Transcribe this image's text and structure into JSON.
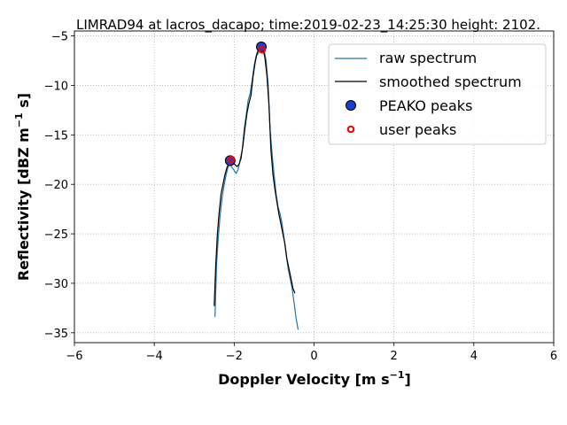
{
  "chart_data": {
    "type": "line",
    "title": "LIMRAD94 at lacros_dacapo; time:2019-02-23_14:25:30 height: 2102.",
    "xlabel": "Doppler Velocity [m s",
    "xlabel_sup": "−1",
    "xlabel_end": "]",
    "ylabel": "Reflectivity [dBZ m",
    "ylabel_sup": "−1",
    "ylabel_end": " s]",
    "xlim": [
      -6,
      6
    ],
    "ylim": [
      -36,
      -4.5
    ],
    "xticks": [
      -6,
      -4,
      -2,
      0,
      2,
      4,
      6
    ],
    "yticks": [
      -35,
      -30,
      -25,
      -20,
      -15,
      -10,
      -5
    ],
    "xtick_labels": [
      "−6",
      "−4",
      "−2",
      "0",
      "2",
      "4",
      "6"
    ],
    "ytick_labels": [
      "−35",
      "−30",
      "−25",
      "−20",
      "−15",
      "−10",
      "−5"
    ],
    "grid": true,
    "legend_position": "top-right",
    "series": [
      {
        "name": "raw spectrum",
        "kind": "line",
        "color": "#1f77b4",
        "x": [
          -2.48,
          -2.44,
          -2.4,
          -2.35,
          -2.3,
          -2.25,
          -2.2,
          -2.15,
          -2.1,
          -2.05,
          -2.0,
          -1.95,
          -1.9,
          -1.85,
          -1.8,
          -1.75,
          -1.7,
          -1.65,
          -1.6,
          -1.55,
          -1.5,
          -1.45,
          -1.4,
          -1.35,
          -1.3,
          -1.25,
          -1.2,
          -1.15,
          -1.1,
          -1.05,
          -1.0,
          -0.95,
          -0.9,
          -0.85,
          -0.8,
          -0.75,
          -0.7,
          -0.65,
          -0.6,
          -0.55,
          -0.5,
          -0.45,
          -0.4
        ],
        "y": [
          -33.4,
          -28.0,
          -25.5,
          -23.0,
          -21.3,
          -20.0,
          -19.0,
          -18.2,
          -18.0,
          -18.3,
          -18.6,
          -18.9,
          -18.5,
          -17.5,
          -16.5,
          -14.5,
          -13.0,
          -11.5,
          -10.8,
          -9.5,
          -8.0,
          -7.0,
          -6.8,
          -6.3,
          -6.2,
          -6.4,
          -7.5,
          -10.0,
          -14.5,
          -17.0,
          -19.0,
          -21.0,
          -22.3,
          -23.0,
          -24.0,
          -25.5,
          -27.0,
          -28.5,
          -29.5,
          -30.5,
          -32.0,
          -33.5,
          -34.7
        ]
      },
      {
        "name": "smoothed spectrum",
        "kind": "line",
        "color": "#000000",
        "x": [
          -2.5,
          -2.46,
          -2.42,
          -2.38,
          -2.33,
          -2.28,
          -2.23,
          -2.18,
          -2.13,
          -2.08,
          -2.04,
          -1.98,
          -1.93,
          -1.88,
          -1.83,
          -1.78,
          -1.73,
          -1.68,
          -1.63,
          -1.58,
          -1.53,
          -1.48,
          -1.43,
          -1.38,
          -1.33,
          -1.28,
          -1.23,
          -1.18,
          -1.13,
          -1.08,
          -1.03,
          -0.98,
          -0.93,
          -0.88,
          -0.83,
          -0.78,
          -0.73,
          -0.68,
          -0.63,
          -0.58,
          -0.53,
          -0.48
        ],
        "y": [
          -32.3,
          -28.0,
          -25.0,
          -23.0,
          -21.0,
          -20.0,
          -19.0,
          -18.3,
          -17.8,
          -17.6,
          -17.7,
          -18.0,
          -18.2,
          -18.0,
          -17.4,
          -16.0,
          -14.3,
          -12.8,
          -11.8,
          -11.0,
          -9.2,
          -7.8,
          -6.8,
          -6.2,
          -6.1,
          -6.3,
          -7.2,
          -9.0,
          -12.0,
          -16.5,
          -19.0,
          -20.5,
          -21.8,
          -23.0,
          -24.0,
          -25.0,
          -26.0,
          -27.5,
          -28.5,
          -29.5,
          -30.5,
          -31.0
        ]
      },
      {
        "name": "PEAKO peaks",
        "kind": "marker",
        "color": "#1a3fd1",
        "edgecolor": "#000000",
        "x": [
          -2.1,
          -1.32
        ],
        "y": [
          -17.6,
          -6.1
        ]
      },
      {
        "name": "user peaks",
        "kind": "ring",
        "color": "#ff0000",
        "x": [
          -2.08,
          -1.3
        ],
        "y": [
          -17.5,
          -6.4
        ]
      }
    ]
  }
}
